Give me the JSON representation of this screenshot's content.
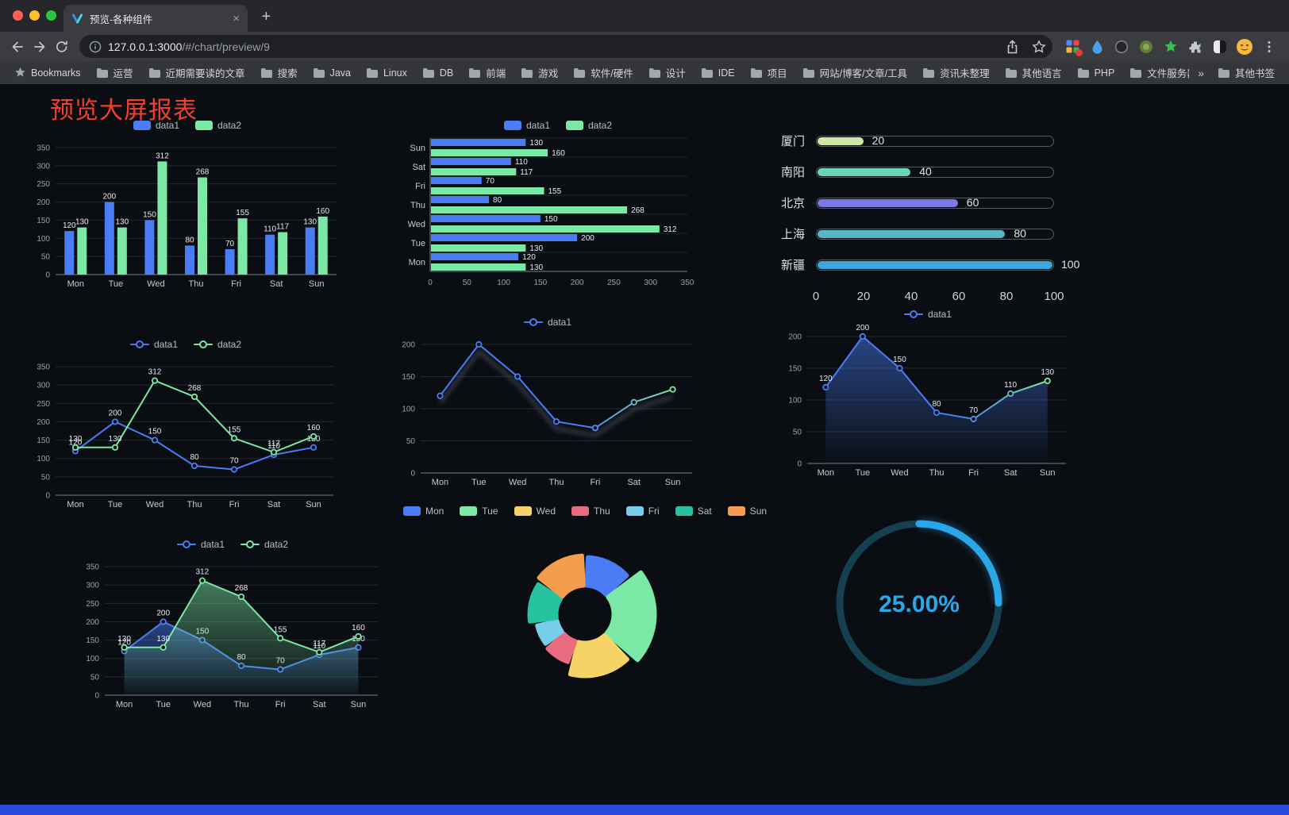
{
  "browser": {
    "tab": {
      "title": "预览-各种组件",
      "close": "×",
      "new_tab": "+"
    },
    "address": {
      "host": "127.0.0.1:3000",
      "path": "/#/chart/preview/9"
    },
    "bookmarks_label": "Bookmarks",
    "bookmarks": [
      "运营",
      "近期需要读的文章",
      "搜索",
      "Java",
      "Linux",
      "DB",
      "前端",
      "游戏",
      "软件/硬件",
      "设计",
      "IDE",
      "项目",
      "网站/博客/文章/工具",
      "资讯未整理",
      "其他语言",
      "PHP",
      "文件服务器"
    ],
    "bookmarks_overflow": "»",
    "other_bookmarks": "其他书签"
  },
  "page": {
    "title": "预览大屏报表"
  },
  "chart_data": [
    {
      "id": "grouped-bar",
      "type": "bar",
      "categories": [
        "Mon",
        "Tue",
        "Wed",
        "Thu",
        "Fri",
        "Sat",
        "Sun"
      ],
      "series": [
        {
          "name": "data1",
          "color": "#4a7df5",
          "values": [
            120,
            200,
            150,
            80,
            70,
            110,
            130
          ]
        },
        {
          "name": "data2",
          "color": "#7ce8a5",
          "values": [
            130,
            130,
            312,
            268,
            155,
            117,
            160
          ]
        }
      ],
      "ylim": [
        0,
        350
      ],
      "yticks": [
        0,
        50,
        100,
        150,
        200,
        250,
        300,
        350
      ],
      "legend_position": "top",
      "value_labels": true,
      "grid": true
    },
    {
      "id": "grouped-hbar",
      "type": "hbar",
      "categories": [
        "Sun",
        "Sat",
        "Fri",
        "Thu",
        "Wed",
        "Tue",
        "Mon"
      ],
      "series": [
        {
          "name": "data1",
          "color": "#4a7df5",
          "values": [
            130,
            110,
            70,
            80,
            150,
            200,
            120
          ]
        },
        {
          "name": "data2",
          "color": "#7ce8a5",
          "values": [
            160,
            117,
            155,
            268,
            312,
            130,
            130
          ]
        }
      ],
      "xlim": [
        0,
        350
      ],
      "xticks": [
        0,
        50,
        100,
        150,
        200,
        250,
        300,
        350
      ],
      "legend_position": "top",
      "value_labels": true,
      "grid": true
    },
    {
      "id": "city-progress",
      "type": "progress",
      "max": 100,
      "axis_ticks": [
        0,
        20,
        40,
        60,
        80,
        100
      ],
      "items": [
        {
          "label": "厦门",
          "value": 20,
          "color": "#cfe7a6"
        },
        {
          "label": "南阳",
          "value": 40,
          "color": "#66d9b4"
        },
        {
          "label": "北京",
          "value": 60,
          "color": "#7b79e6"
        },
        {
          "label": "上海",
          "value": 80,
          "color": "#58b6c9"
        },
        {
          "label": "新疆",
          "value": 100,
          "color": "#3aa7de"
        }
      ]
    },
    {
      "id": "line-dual",
      "type": "line",
      "categories": [
        "Mon",
        "Tue",
        "Wed",
        "Thu",
        "Fri",
        "Sat",
        "Sun"
      ],
      "series": [
        {
          "name": "data1",
          "color": "#4a7df5",
          "values": [
            120,
            200,
            150,
            80,
            70,
            110,
            130
          ]
        },
        {
          "name": "data2",
          "color": "#7ce8a5",
          "values": [
            130,
            130,
            312,
            268,
            155,
            117,
            160
          ]
        }
      ],
      "ylim": [
        0,
        350
      ],
      "yticks": [
        0,
        50,
        100,
        150,
        200,
        250,
        300,
        350
      ],
      "legend_position": "top",
      "value_labels": true,
      "grid": true
    },
    {
      "id": "line-gradient",
      "type": "line",
      "categories": [
        "Mon",
        "Tue",
        "Wed",
        "Thu",
        "Fri",
        "Sat",
        "Sun"
      ],
      "series": [
        {
          "name": "data1",
          "color": "#4a7df5",
          "color_end": "#7ce8a5",
          "shadow": true,
          "values": [
            120,
            200,
            150,
            80,
            70,
            110,
            130
          ]
        }
      ],
      "ylim": [
        0,
        200
      ],
      "yticks": [
        0,
        50,
        100,
        150,
        200
      ],
      "legend_position": "top",
      "value_labels": false,
      "grid": true
    },
    {
      "id": "line-area",
      "type": "line",
      "categories": [
        "Mon",
        "Tue",
        "Wed",
        "Thu",
        "Fri",
        "Sat",
        "Sun"
      ],
      "series": [
        {
          "name": "data1",
          "color": "#4a7df5",
          "color_end": "#7ce8a5",
          "area": true,
          "values": [
            120,
            200,
            150,
            80,
            70,
            110,
            130
          ]
        }
      ],
      "ylim": [
        0,
        200
      ],
      "yticks": [
        0,
        50,
        100,
        150,
        200
      ],
      "legend_position": "top",
      "value_labels": true,
      "grid": true
    },
    {
      "id": "line-dual-area",
      "type": "line",
      "categories": [
        "Mon",
        "Tue",
        "Wed",
        "Thu",
        "Fri",
        "Sat",
        "Sun"
      ],
      "series": [
        {
          "name": "data1",
          "color": "#4a7df5",
          "area": true,
          "values": [
            120,
            200,
            150,
            80,
            70,
            110,
            130
          ]
        },
        {
          "name": "data2",
          "color": "#7ce8a5",
          "area": true,
          "values": [
            130,
            130,
            312,
            268,
            155,
            117,
            160
          ]
        }
      ],
      "ylim": [
        0,
        350
      ],
      "yticks": [
        0,
        50,
        100,
        150,
        200,
        250,
        300,
        350
      ],
      "legend_position": "top",
      "value_labels": true,
      "grid": true
    },
    {
      "id": "week-rose",
      "type": "pie",
      "rose": true,
      "legend_position": "top",
      "slices": [
        {
          "label": "Mon",
          "value": 120,
          "color": "#4a7df5"
        },
        {
          "label": "Tue",
          "value": 200,
          "color": "#7ce8a5"
        },
        {
          "label": "Wed",
          "value": 150,
          "color": "#f6d365"
        },
        {
          "label": "Thu",
          "value": 80,
          "color": "#e96b80"
        },
        {
          "label": "Fri",
          "value": 70,
          "color": "#79cdeb"
        },
        {
          "label": "Sat",
          "value": 110,
          "color": "#27c2a0"
        },
        {
          "label": "Sun",
          "value": 130,
          "color": "#f49d4d"
        }
      ]
    },
    {
      "id": "percent-gauge",
      "type": "gauge",
      "value": 25,
      "label": "25.00%",
      "color": "#2ba6e9",
      "track_color": "#15404f"
    }
  ]
}
